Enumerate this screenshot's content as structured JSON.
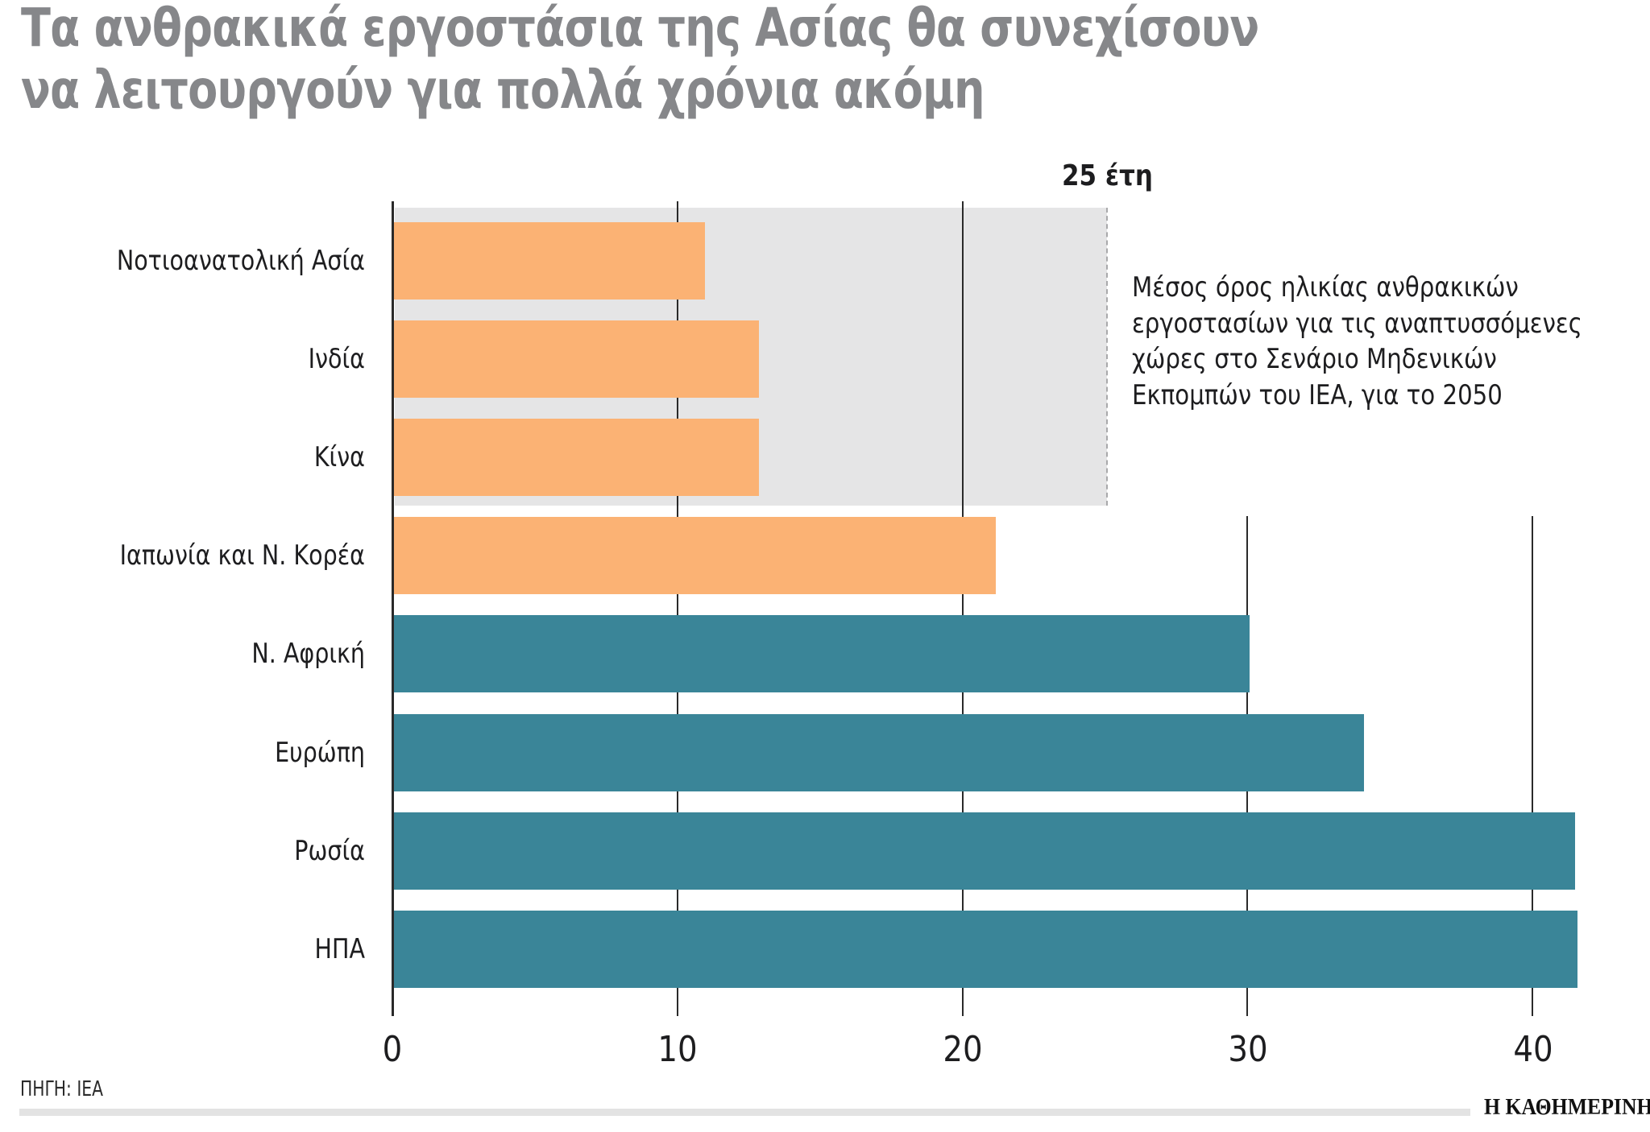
{
  "header": {
    "title_line1": "Τα ανθρακικά εργοστάσια της Ασίας θα συνεχίσουν",
    "title_line2": "να λειτουργούν για πολλά χρόνια ακόμη"
  },
  "reference": {
    "label": "25 έτη",
    "value": 25,
    "note_lines": [
      "Μέσος όρος ηλικίας ανθρακικών",
      "εργοστασίων για τις αναπτυσσόμενες",
      "χώρες στο Σενάριο Μηδενικών",
      "Εκπομπών του ΙΕΑ, για το 2050"
    ]
  },
  "footer": {
    "source": "ΠΗΓΗ: IEA",
    "brand": "Η ΚΑΘΗΜΕΡΙΝΗ"
  },
  "colors": {
    "asia": "#fbb274",
    "other": "#3a8598",
    "shade": "#e5e5e6",
    "title": "#86878a"
  },
  "chart_data": {
    "type": "bar",
    "orientation": "horizontal",
    "title": "Τα ανθρακικά εργοστάσια της Ασίας θα συνεχίσουν να λειτουργούν για πολλά χρόνια ακόμη",
    "xlabel": "",
    "ylabel": "",
    "xlim": [
      0,
      42
    ],
    "xticks": [
      0,
      10,
      20,
      30,
      40
    ],
    "grid": true,
    "categories": [
      "Νοτιοανατολική Ασία",
      "Ινδία",
      "Κίνα",
      "Ιαπωνία και Ν. Κορέα",
      "Ν. Αφρική",
      "Ευρώπη",
      "Ρωσία",
      "ΗΠΑ"
    ],
    "values": [
      10.9,
      12.8,
      12.8,
      21.1,
      30.0,
      34.0,
      41.4,
      41.5
    ],
    "groups": [
      "asia",
      "asia",
      "asia",
      "asia",
      "other",
      "other",
      "other",
      "other"
    ],
    "reference_line": {
      "value": 25,
      "label": "25 έτη",
      "style": "dashed",
      "annotation": "Μέσος όρος ηλικίας ανθρακικών εργοστασίων για τις αναπτυσσόμενες χώρες στο Σενάριο Μηδενικών Εκπομπών του ΙΕΑ, για το 2050"
    },
    "source": "ΠΗΓΗ: IEA"
  }
}
